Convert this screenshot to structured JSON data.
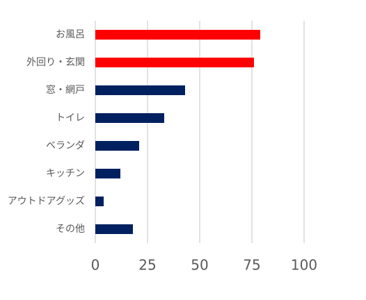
{
  "chart_data": {
    "type": "bar",
    "orientation": "horizontal",
    "categories": [
      "お風呂",
      "外回り・玄関",
      "窓・網戸",
      "トイレ",
      "ベランダ",
      "キッチン",
      "アウトドアグッズ",
      "その他"
    ],
    "values": [
      79,
      76,
      43,
      33,
      21,
      12,
      4,
      18
    ],
    "colors": [
      "#ff0000",
      "#ff0000",
      "#002060",
      "#002060",
      "#002060",
      "#002060",
      "#002060",
      "#002060"
    ],
    "xlim": [
      0,
      100
    ],
    "xticks": [
      0,
      25,
      50,
      75,
      100
    ],
    "grid": true
  }
}
